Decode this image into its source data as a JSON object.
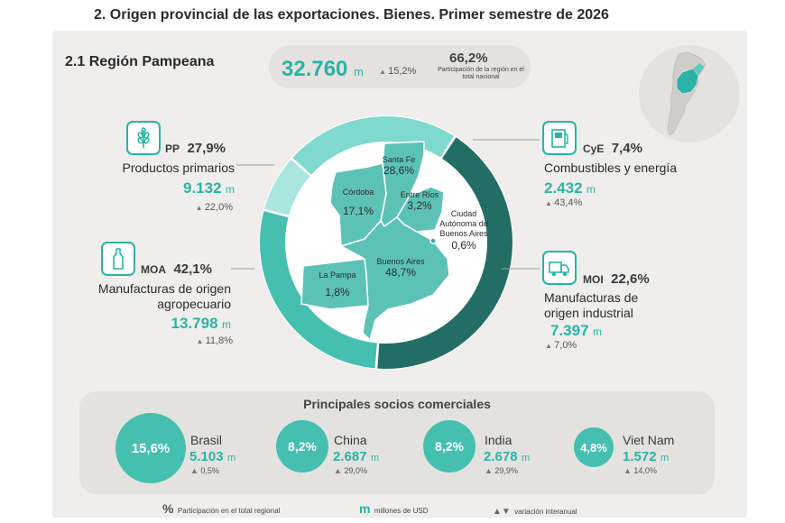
{
  "page_title": "2. Origen provincial de las exportaciones. Bienes. Primer semestre de 2026",
  "region": {
    "title": "2.1 Región Pampeana",
    "total_value": "32.760",
    "total_unit": "m",
    "total_variation": "15,2%",
    "share": "66,2%",
    "share_label": "Participación de la región en el total nacional"
  },
  "categories": [
    {
      "id": "pp",
      "code": "PP",
      "pct": "27,9%",
      "name": "Productos primarios",
      "value": "9.132",
      "unit": "m",
      "variation": "22,0%",
      "icon": "wheat-icon",
      "share": 27.9
    },
    {
      "id": "cye",
      "code": "CyE",
      "pct": "7,4%",
      "name": "Combustibles y energía",
      "value": "2.432",
      "unit": "m",
      "variation": "43,4%",
      "icon": "fuel-pump-icon",
      "share": 7.4
    },
    {
      "id": "moa",
      "code": "MOA",
      "pct": "42,1%",
      "name_line1": "Manufacturas de origen",
      "name_line2": "agropecuario",
      "value": "13.798",
      "unit": "m",
      "variation": "11,8%",
      "icon": "bottle-icon",
      "share": 42.1
    },
    {
      "id": "moi",
      "code": "MOI",
      "pct": "22,6%",
      "name_line1": "Manufacturas de",
      "name_line2": "origen industrial",
      "value": "7.397",
      "unit": "m",
      "variation": "7,0%",
      "icon": "truck-icon",
      "share": 22.6
    }
  ],
  "provinces": [
    {
      "name": "Santa Fe",
      "pct": "28,6%"
    },
    {
      "name": "Córdoba",
      "pct": "17,1%"
    },
    {
      "name": "Entre Ríos",
      "pct": "3,2%"
    },
    {
      "name_line1": "Ciudad",
      "name_line2": "Autónoma de",
      "name_line3": "Buenos Aires",
      "pct": "0,6%"
    },
    {
      "name": "Buenos Aires",
      "pct": "48,7%"
    },
    {
      "name": "La Pampa",
      "pct": "1,8%"
    }
  ],
  "partners": {
    "title": "Principales socios comerciales",
    "items": [
      {
        "pct": "15,6%",
        "name": "Brasil",
        "value": "5.103",
        "unit": "m",
        "variation": "0,5%"
      },
      {
        "pct": "8,2%",
        "name": "China",
        "value": "2.687",
        "unit": "m",
        "variation": "29,0%"
      },
      {
        "pct": "8,2%",
        "name": "India",
        "value": "2.678",
        "unit": "m",
        "variation": "29,9%"
      },
      {
        "pct": "4,8%",
        "name": "Viet Nam",
        "value": "1.572",
        "unit": "m",
        "variation": "14,0%"
      }
    ]
  },
  "legend": {
    "pct_symbol": "%",
    "pct_label": "Participación en el total regional",
    "unit_symbol": "m",
    "unit_label": "millones de USD",
    "var_symbol": "▲▼",
    "var_label": "variación interanual"
  },
  "colors": {
    "teal": "#2ab3a6",
    "light_teal": "#a8e6df",
    "mid_teal": "#45bfb0",
    "dark_teal": "#236e64",
    "panel": "#efeeec"
  }
}
